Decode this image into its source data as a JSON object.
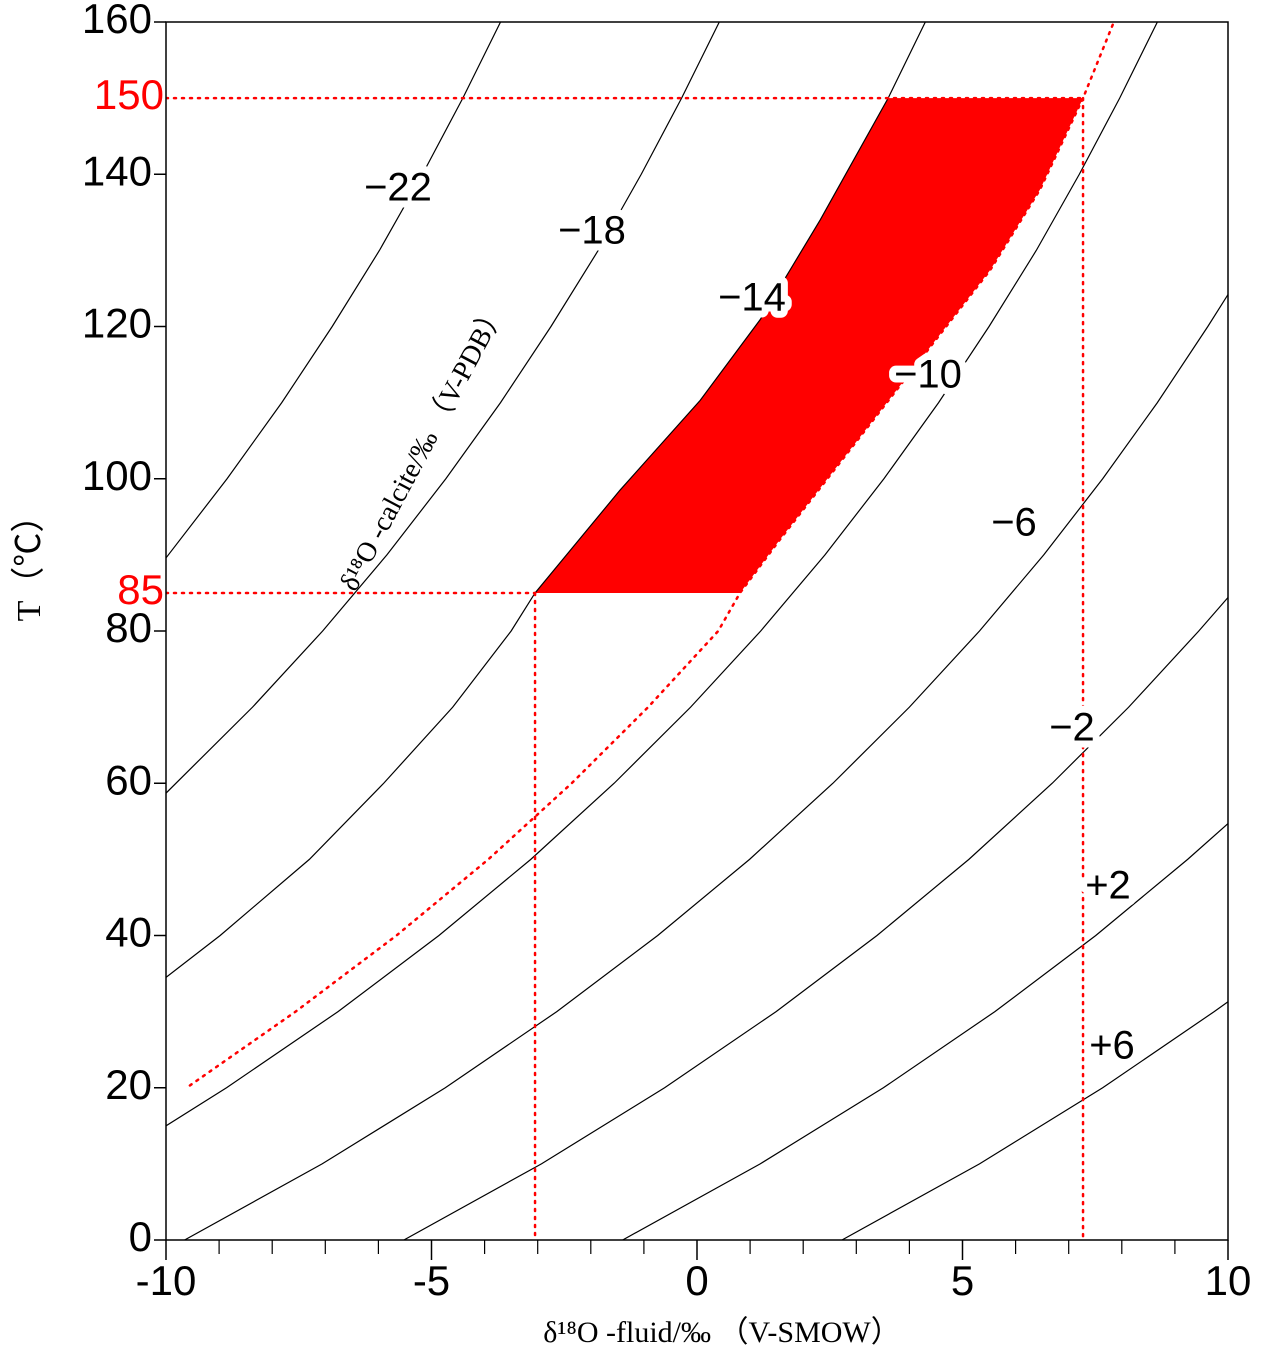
{
  "chart_data": {
    "type": "line",
    "xlabel": "δ¹⁸O -fluid/‰ （V-SMOW）",
    "ylabel": "T（℃）",
    "annotation": "δ¹⁸O -calcite/‰ （V-PDB）",
    "xlim": [
      -10,
      10
    ],
    "ylim": [
      0,
      160
    ],
    "xticks": [
      -10,
      -5,
      0,
      5,
      10
    ],
    "xminor_ticks": [
      -9,
      -8,
      -7,
      -6,
      -4,
      -3,
      -2,
      -1,
      1,
      2,
      3,
      4,
      6,
      7,
      8,
      9
    ],
    "yticks": [
      0,
      20,
      40,
      60,
      80,
      100,
      120,
      140,
      160
    ],
    "highlight": {
      "color": "#ff0000",
      "yticks": [
        85,
        150
      ]
    },
    "series": [
      {
        "name": "−22",
        "color": "#000000",
        "x": [
          -10,
          -8.85,
          -7.82,
          -6.87,
          -5.98,
          -5.17,
          -4.41,
          -3.7
        ],
        "y": [
          89.6,
          100,
          110,
          120,
          130,
          140,
          150,
          160
        ]
      },
      {
        "name": "−18",
        "color": "#000000",
        "x": [
          -10,
          -8.37,
          -7.05,
          -5.84,
          -4.73,
          -3.7,
          -2.75,
          -1.86,
          -1.05,
          -0.29,
          0.42
        ],
        "y": [
          58.7,
          70,
          80,
          90,
          100,
          110,
          120,
          130,
          140,
          150,
          160
        ]
      },
      {
        "name": "−14",
        "color": "#000000",
        "x": [
          -10,
          -8.98,
          -7.3,
          -5.9,
          -4.6,
          -3.5,
          -3.05,
          -1.45,
          0.06,
          1.19,
          2.32,
          3.6,
          4.3
        ],
        "y": [
          34.5,
          40,
          50,
          60,
          70,
          80,
          85,
          98.5,
          110.3,
          120.9,
          134,
          150,
          160
        ]
      },
      {
        "name": "−10",
        "color": "#000000",
        "x": [
          -10,
          -8.86,
          -6.76,
          -4.86,
          -3.13,
          -1.56,
          -0.12,
          1.2,
          2.41,
          3.52,
          4.55,
          5.5,
          6.39,
          7.2,
          7.96,
          8.67
        ],
        "y": [
          15,
          20,
          30,
          40,
          50,
          60,
          70,
          80,
          90,
          100,
          110,
          120,
          130,
          140,
          150,
          160
        ]
      },
      {
        "name": "−6",
        "color": "#000000",
        "x": [
          -9.65,
          -7.06,
          -4.74,
          -2.64,
          -0.74,
          0.99,
          2.56,
          4.0,
          5.32,
          6.53,
          7.64,
          8.67,
          9.62,
          10
        ],
        "y": [
          0,
          10,
          20,
          30,
          40,
          50,
          60,
          70,
          80,
          90,
          100,
          110,
          120,
          124.2
        ]
      },
      {
        "name": "−2",
        "color": "#000000",
        "x": [
          -5.52,
          -2.93,
          -0.61,
          1.49,
          3.39,
          5.12,
          6.69,
          8.13,
          9.45,
          10
        ],
        "y": [
          0,
          10,
          20,
          30,
          40,
          50,
          60,
          70,
          80,
          84.4
        ]
      },
      {
        "name": "+2",
        "color": "#000000",
        "x": [
          -1.4,
          1.19,
          3.51,
          5.61,
          7.51,
          9.24,
          10
        ],
        "y": [
          0,
          10,
          20,
          30,
          40,
          50,
          54.7
        ]
      },
      {
        "name": "+6",
        "color": "#000000",
        "x": [
          2.73,
          5.32,
          7.64,
          9.74,
          10
        ],
        "y": [
          0,
          10,
          20,
          30,
          31.3
        ]
      }
    ],
    "region": {
      "color": "#ff0000",
      "x": [
        -3.05,
        -1.45,
        0.06,
        1.19,
        2.32,
        3.6,
        7.27,
        6.46,
        5.52,
        4.2,
        2.88,
        1.56,
        0.81
      ],
      "y": [
        85,
        98.5,
        110.3,
        120.9,
        134,
        150,
        150,
        138,
        127.4,
        115.6,
        103.8,
        92,
        85
      ]
    },
    "boundary": {
      "color": "#ff0000",
      "style": "dotted",
      "x": [
        -9.55,
        -7.56,
        -5.66,
        -3.93,
        -2.36,
        -0.92,
        0.4,
        0.81,
        1.56,
        2.88,
        4.2,
        5.52,
        6.46,
        7.27,
        7.85
      ],
      "y": [
        20.3,
        30,
        40,
        50,
        60,
        70,
        80,
        85,
        92,
        103.8,
        115.6,
        127.4,
        138,
        150,
        160
      ]
    }
  }
}
